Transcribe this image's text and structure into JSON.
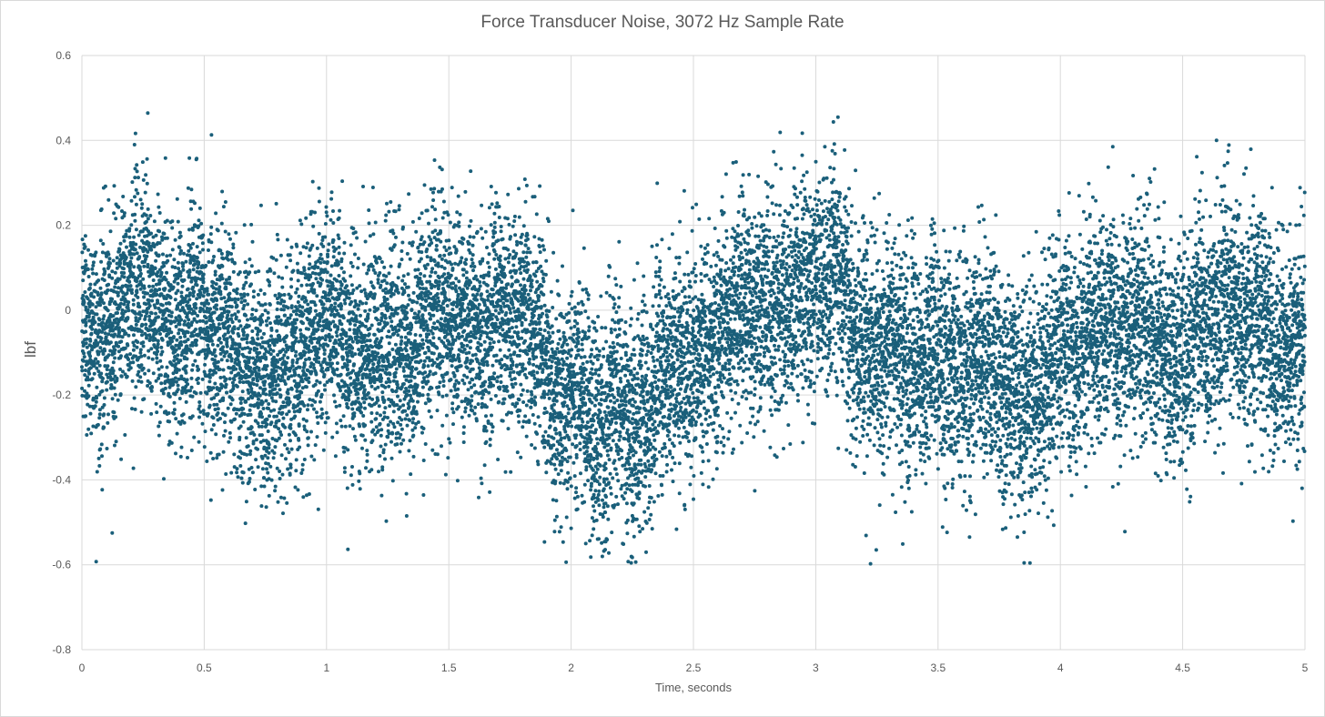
{
  "chart_data": {
    "type": "scatter",
    "title": "Force Transducer Noise, 3072 Hz Sample Rate",
    "xlabel": "Time, seconds",
    "ylabel": "lbf",
    "xlim": [
      0,
      5
    ],
    "ylim": [
      -0.8,
      0.6
    ],
    "x_ticks": [
      "0",
      "0.5",
      "1",
      "1.5",
      "2",
      "2.5",
      "3",
      "3.5",
      "4",
      "4.5",
      "5"
    ],
    "y_ticks": [
      "0.6",
      "0.4",
      "0.2",
      "0",
      "-0.2",
      "-0.4",
      "-0.6",
      "-0.8"
    ],
    "grid": true,
    "legend": "none",
    "marker_color": "#1a5f7a",
    "sample_rate_hz": 3072,
    "series": [
      {
        "description_of_trend": [
          {
            "x": 0.0,
            "y": -0.05
          },
          {
            "x": 0.25,
            "y": 0.06
          },
          {
            "x": 0.5,
            "y": -0.08
          },
          {
            "x": 0.75,
            "y": -0.18
          },
          {
            "x": 1.0,
            "y": -0.06
          },
          {
            "x": 1.25,
            "y": -0.09
          },
          {
            "x": 1.5,
            "y": 0.02
          },
          {
            "x": 1.75,
            "y": 0.01
          },
          {
            "x": 2.0,
            "y": -0.14
          },
          {
            "x": 2.15,
            "y": -0.22
          },
          {
            "x": 2.5,
            "y": -0.08
          },
          {
            "x": 2.75,
            "y": 0.02
          },
          {
            "x": 3.0,
            "y": 0.05
          },
          {
            "x": 3.25,
            "y": -0.05
          },
          {
            "x": 3.5,
            "y": -0.12
          },
          {
            "x": 3.75,
            "y": -0.15
          },
          {
            "x": 4.0,
            "y": -0.08
          },
          {
            "x": 4.25,
            "y": -0.02
          },
          {
            "x": 4.5,
            "y": -0.05
          },
          {
            "x": 4.75,
            "y": -0.06
          },
          {
            "x": 5.0,
            "y": -0.1
          }
        ],
        "noise_std": 0.13,
        "point_count": 15360
      }
    ]
  }
}
